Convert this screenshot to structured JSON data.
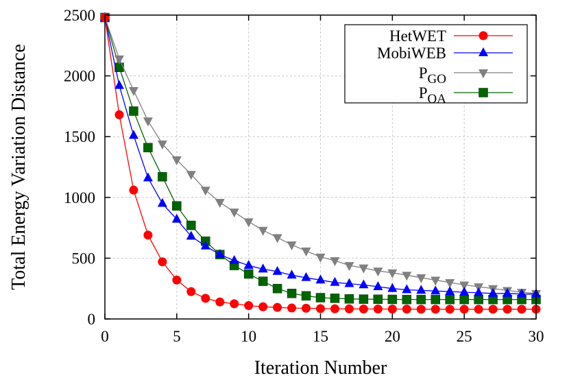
{
  "chart_data": {
    "type": "line",
    "title": "",
    "xlabel": "Iteration Number",
    "ylabel": "Total Energy Variation Distance",
    "xlim": [
      0,
      30
    ],
    "ylim": [
      0,
      2500
    ],
    "xticks": [
      0,
      5,
      10,
      15,
      20,
      25,
      30
    ],
    "yticks": [
      0,
      500,
      1000,
      1500,
      2000,
      2500
    ],
    "grid": true,
    "legend_position": "top-right",
    "x": [
      0,
      1,
      2,
      3,
      4,
      5,
      6,
      7,
      8,
      9,
      10,
      11,
      12,
      13,
      14,
      15,
      16,
      17,
      18,
      19,
      20,
      21,
      22,
      23,
      24,
      25,
      26,
      27,
      28,
      29,
      30
    ],
    "series": [
      {
        "name": "HetWET",
        "name_main": "HetWET",
        "name_sub": "",
        "color": "#ff0000",
        "marker": "circle",
        "values": [
          2480,
          1680,
          1060,
          690,
          470,
          320,
          225,
          170,
          140,
          125,
          110,
          100,
          95,
          90,
          88,
          85,
          84,
          83,
          82,
          82,
          81,
          81,
          80,
          80,
          80,
          80,
          80,
          80,
          80,
          80,
          80
        ]
      },
      {
        "name": "MobiWEB",
        "name_main": "MobiWEB",
        "name_sub": "",
        "color": "#0000ff",
        "marker": "triangle-up",
        "values": [
          2480,
          1920,
          1510,
          1160,
          950,
          820,
          680,
          600,
          530,
          480,
          440,
          410,
          390,
          360,
          340,
          320,
          300,
          290,
          280,
          265,
          250,
          240,
          235,
          230,
          225,
          220,
          215,
          210,
          210,
          205,
          205
        ]
      },
      {
        "name": "PGO",
        "name_main": "P",
        "name_sub": "GO",
        "color": "#808080",
        "marker": "triangle-down",
        "values": [
          2480,
          2140,
          1880,
          1630,
          1440,
          1310,
          1190,
          1060,
          960,
          880,
          800,
          730,
          670,
          610,
          560,
          510,
          480,
          440,
          420,
          395,
          380,
          360,
          340,
          320,
          300,
          280,
          265,
          250,
          235,
          220,
          210
        ]
      },
      {
        "name": "POA",
        "name_main": "P",
        "name_sub": "OA",
        "color": "#006400",
        "marker": "square",
        "values": [
          2480,
          2070,
          1710,
          1410,
          1170,
          930,
          770,
          640,
          530,
          440,
          370,
          310,
          250,
          210,
          190,
          175,
          170,
          165,
          163,
          162,
          161,
          160,
          160,
          160,
          160,
          160,
          160,
          160,
          160,
          160,
          160
        ]
      }
    ]
  }
}
